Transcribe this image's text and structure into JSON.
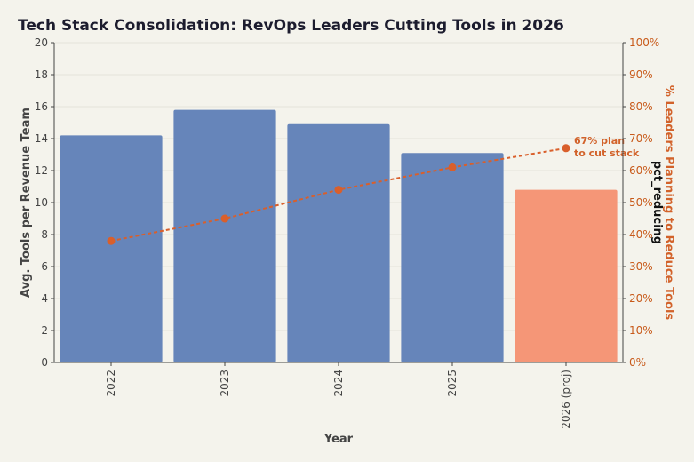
{
  "chart_data": {
    "type": "bar",
    "title": "Tech Stack Consolidation: RevOps Leaders Cutting Tools in 2026",
    "xlabel": "Year",
    "ylabel": "Avg. Tools per Revenue Team",
    "y2label": "% Leaders Planning to Reduce Tools",
    "y2_series_label": "pct_reducing",
    "categories": [
      "2022",
      "2023",
      "2024",
      "2025",
      "2026 (proj)"
    ],
    "series": [
      {
        "type": "bar",
        "values": [
          14.2,
          15.8,
          14.9,
          13.1,
          10.8
        ],
        "colors": [
          "#6685ba",
          "#6685ba",
          "#6685ba",
          "#6685ba",
          "#f59677"
        ]
      },
      {
        "name": "pct_reducing",
        "type": "line",
        "axis": "right",
        "values": [
          38,
          45,
          54,
          61,
          67
        ],
        "color": "#d95f2b",
        "style": "dotted"
      }
    ],
    "ylim": [
      0,
      20
    ],
    "y_ticks": [
      0,
      2,
      4,
      6,
      8,
      10,
      12,
      14,
      16,
      18,
      20
    ],
    "y2lim": [
      0,
      100
    ],
    "y2_ticks": [
      "0%",
      "10%",
      "20%",
      "30%",
      "40%",
      "50%",
      "60%",
      "70%",
      "80%",
      "90%",
      "100%"
    ],
    "grid": true,
    "annotations": [
      {
        "text_lines": [
          "67% plan",
          "to cut stack"
        ],
        "category": "2026 (proj)",
        "y2": 67
      }
    ]
  }
}
